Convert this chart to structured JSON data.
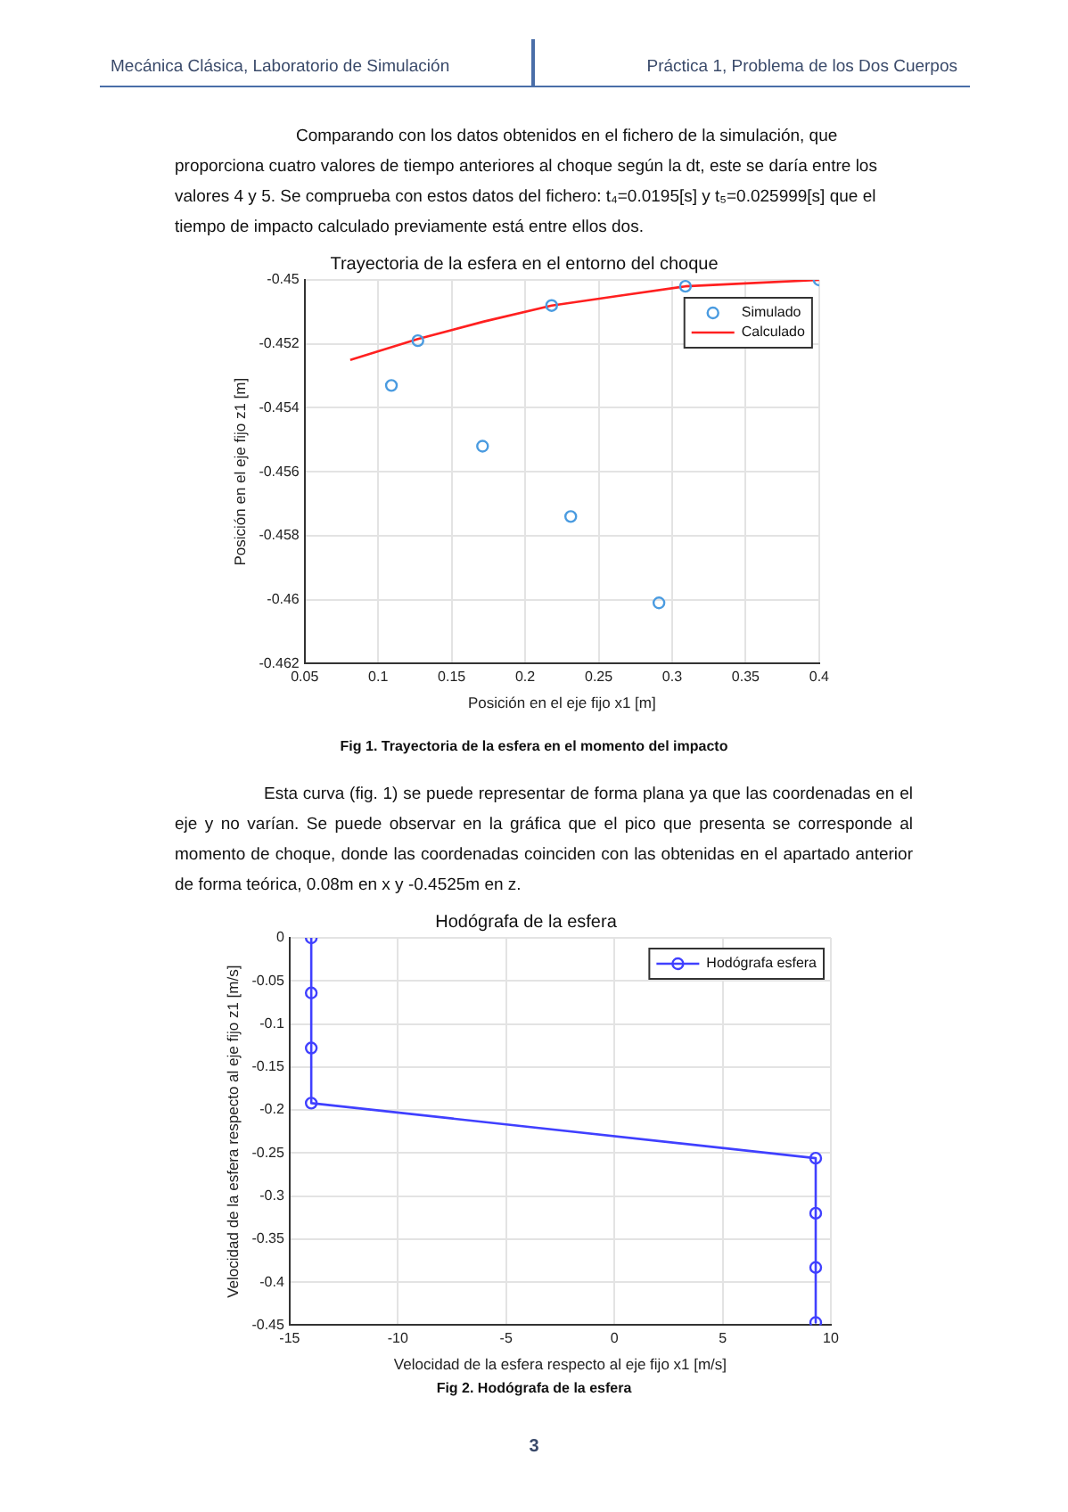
{
  "chart_data": [
    {
      "type": "scatter",
      "title": "Trayectoria de la esfera en el entorno del choque",
      "xlabel": "Posición en el eje fijo x1 [m]",
      "ylabel": "Posición en el eje fijo z1 [m]",
      "annotations": [
        "Mecánica  Clásica, Laboratorio de Simulación",
        "Práctica 1, Problema de los Dos Cuerpos",
        "Comparando con los datos obtenidos en el fichero de la simulación, que proporciona cuatro valores de tiempo anteriores al choque según la dt, este se daría entre los valores 4 y 5. Se comprueba con estos datos del fichero:     t₄=0.0195[s]   y t₅=0.025999[s]   que el tiempo de impacto calculado previamente está entre ellos dos.",
        "Fig 1. Trayectoria de la esfera en el momento del impacto",
        "Esta curva (fig. 1) se puede representar de forma plana ya que las coordenadas en el eje y no varían. Se puede observar en la gráfica que el pico que presenta se corresponde al momento de choque, donde las coordenadas coinciden con las obtenidas en el apartado anterior de forma teórica, 0.08m en x y -0.4525m en z."
      ],
      "xlim": [
        0.05,
        0.4
      ],
      "xticks": [
        0.05,
        0.1,
        0.15,
        0.2,
        0.25,
        0.3,
        0.35,
        0.4
      ],
      "ylim": [
        -0.462,
        -0.45
      ],
      "yticks": [
        -0.462,
        -0.46,
        -0.458,
        -0.456,
        -0.454,
        -0.452,
        -0.45
      ],
      "grid": true,
      "legend": "top right",
      "series": [
        {
          "name": "Simulado",
          "type": "scatter",
          "marker": "circle",
          "color": "#4a9be0",
          "x": [
            0.109,
            0.127,
            0.171,
            0.218,
            0.231,
            0.291,
            0.309,
            0.4
          ],
          "values": [
            -0.4533,
            -0.4519,
            -0.4552,
            -0.4508,
            -0.4574,
            -0.4601,
            -0.4502,
            -0.45
          ]
        },
        {
          "name": "Calculado",
          "type": "line",
          "marker": "none",
          "color": "#ff2020",
          "x": [
            0.081,
            0.127,
            0.172,
            0.218,
            0.263,
            0.309,
            0.353,
            0.4
          ],
          "values": [
            -0.4525,
            -0.45185,
            -0.4513,
            -0.4508,
            -0.4505,
            -0.4502,
            -0.4501,
            -0.45
          ]
        }
      ]
    },
    {
      "type": "line",
      "title": "Hodógrafa de la esfera",
      "xlabel": "Velocidad de la esfera respecto al eje fijo x1 [m/s]",
      "ylabel": "Velocidad de la esfera respecto al eje fijo z1 [m/s]",
      "annotations": [
        "Fig 2. Hodógrafa de la esfera",
        "3"
      ],
      "xlim": [
        -15,
        10
      ],
      "xticks": [
        -15,
        -10,
        -5,
        0,
        5,
        10
      ],
      "ylim": [
        -0.45,
        0
      ],
      "yticks": [
        -0.45,
        -0.4,
        -0.35,
        -0.3,
        -0.25,
        -0.2,
        -0.15,
        -0.1,
        -0.05,
        0
      ],
      "grid": true,
      "legend": "top right",
      "marker": "circle",
      "series": [
        {
          "name": "Hodógrafa esfera",
          "color": "#4040ff",
          "x": [
            -14,
            -14,
            -14,
            -14,
            9.3,
            9.3,
            9.3,
            9.3
          ],
          "values": [
            0,
            -0.064,
            -0.128,
            -0.192,
            -0.256,
            -0.32,
            -0.383,
            -0.447
          ]
        }
      ]
    }
  ]
}
